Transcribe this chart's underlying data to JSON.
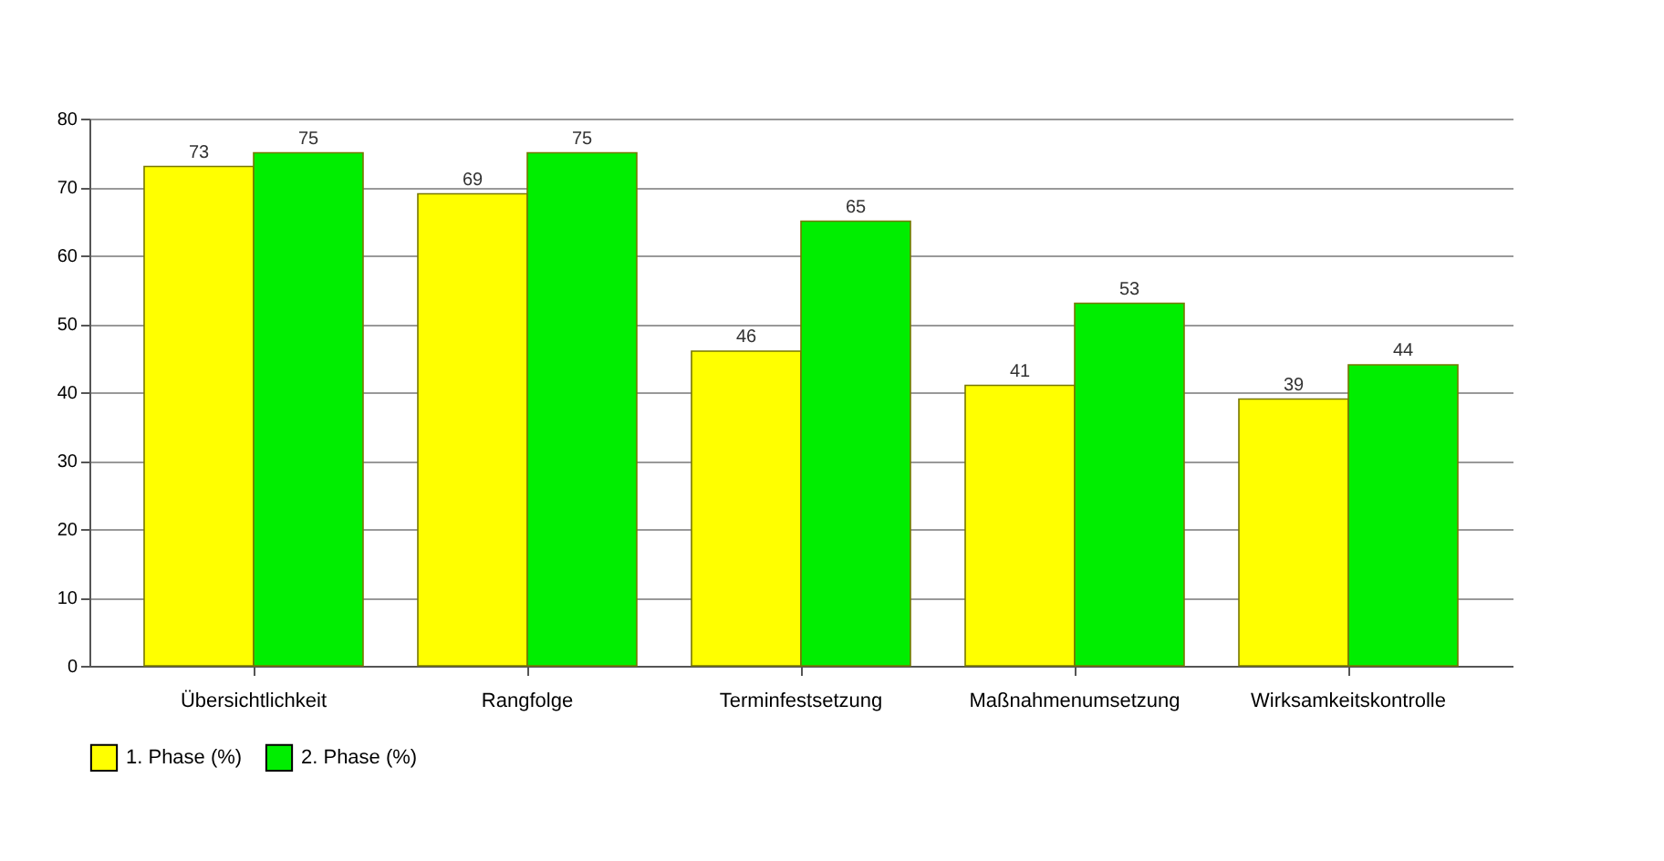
{
  "chart_data": {
    "type": "bar",
    "categories": [
      "Übersichtlichkeit",
      "Rangfolge",
      "Terminfestsetzung",
      "Maßnahmenumsetzung",
      "Wirksamkeitskontrolle"
    ],
    "series": [
      {
        "name": "1. Phase (%)",
        "color": "#ffff00",
        "values": [
          73,
          69,
          46,
          41,
          39
        ]
      },
      {
        "name": "2. Phase (%)",
        "color": "#00ee00",
        "values": [
          75,
          75,
          65,
          53,
          44
        ]
      }
    ],
    "ylim": [
      0,
      80
    ],
    "yticks": [
      0,
      10,
      20,
      30,
      40,
      50,
      60,
      70,
      80
    ],
    "grid": "y",
    "legend": "bottom",
    "data_labels": true
  }
}
